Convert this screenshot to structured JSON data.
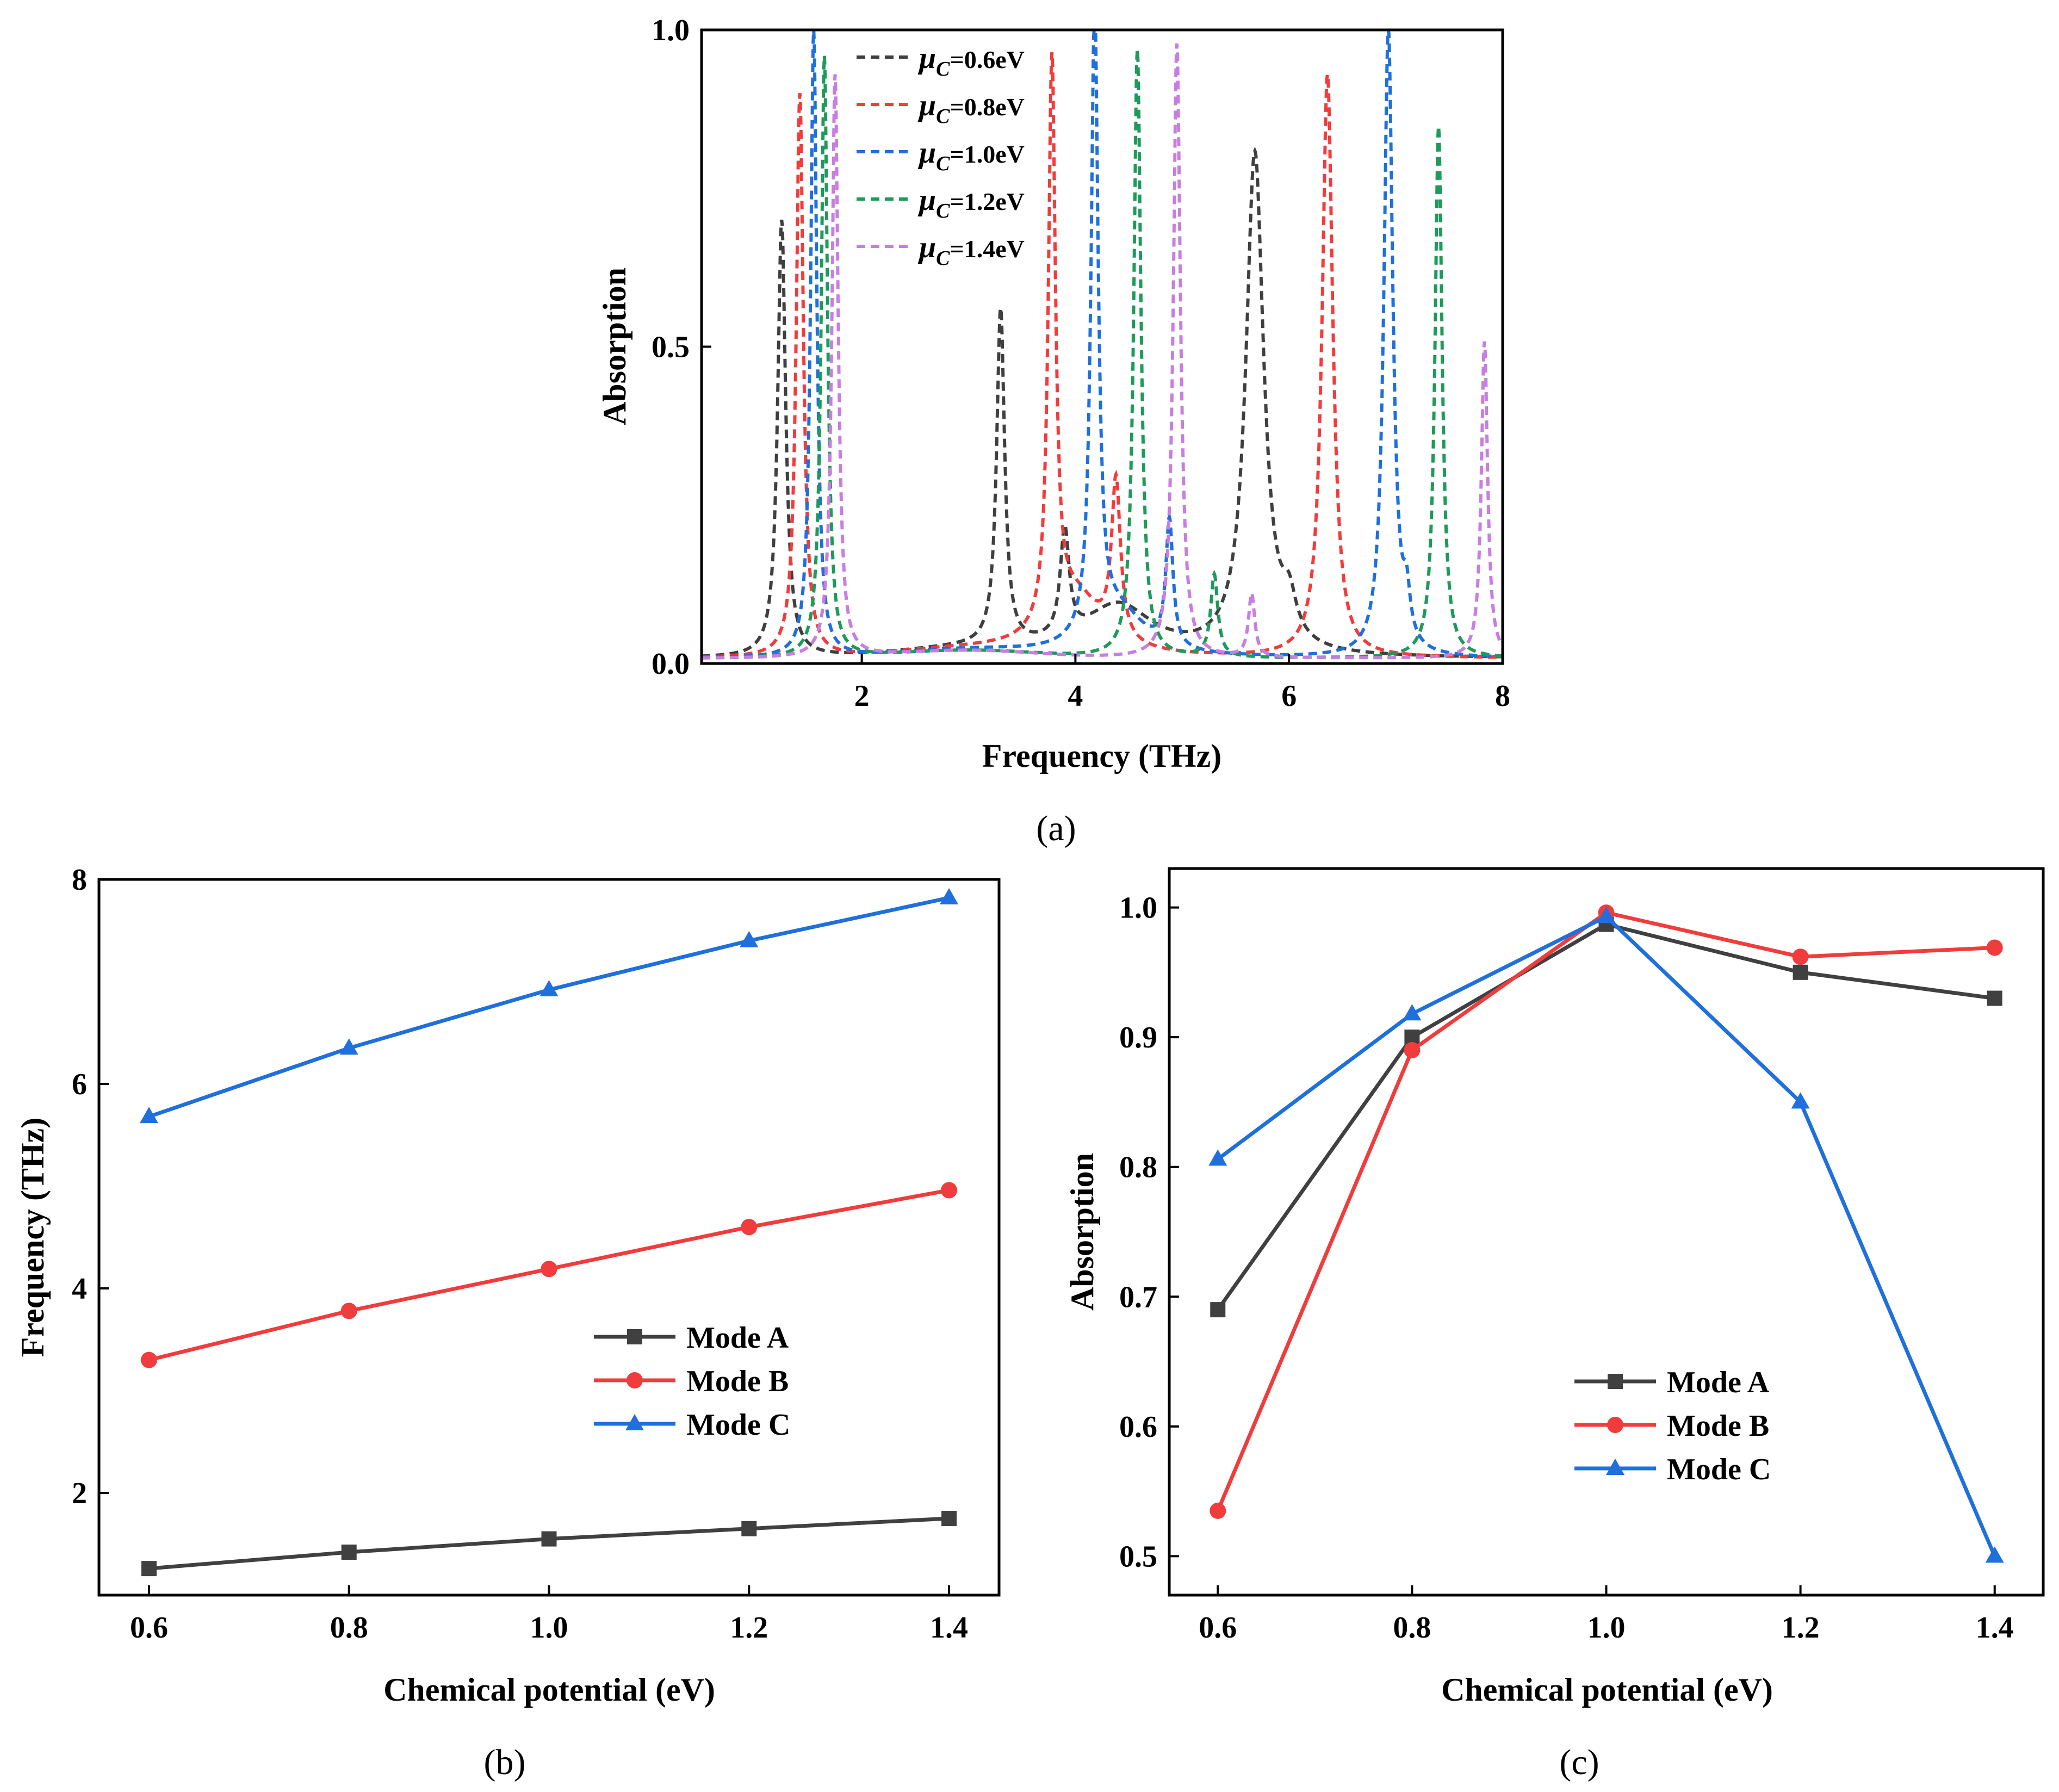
{
  "panels": {
    "a": {
      "caption": "(a)",
      "chart_data": {
        "type": "line",
        "title": "",
        "xlabel": "Frequency (THz)",
        "ylabel": "Absorption",
        "xlim": [
          0.5,
          8
        ],
        "ylim": [
          0,
          1
        ],
        "xticks": [
          "2",
          "4",
          "6",
          "8"
        ],
        "yticks": [
          "0.0",
          "0.5",
          "1.0"
        ],
        "line_style": "dashed",
        "legend_position": "top-left",
        "series": [
          {
            "name": "μC=0.6eV",
            "legend_mu": "μ",
            "legend_sub": "C",
            "legend_val": "=0.6eV",
            "color": "#3f3f3f",
            "peaks": [
              {
                "f": 1.25,
                "a": 0.69,
                "w": 0.045
              },
              {
                "f": 3.3,
                "a": 0.53,
                "w": 0.045
              },
              {
                "f": 3.9,
                "a": 0.17,
                "w": 0.05
              },
              {
                "f": 4.4,
                "a": 0.08,
                "w": 0.4
              },
              {
                "f": 5.68,
                "a": 0.79,
                "w": 0.1
              },
              {
                "f": 6.0,
                "a": 0.06,
                "w": 0.08
              }
            ]
          },
          {
            "name": "μC=0.8eV",
            "legend_mu": "μ",
            "legend_sub": "C",
            "legend_val": "=0.8eV",
            "color": "#f03c3c",
            "peaks": [
              {
                "f": 1.42,
                "a": 0.89,
                "w": 0.04
              },
              {
                "f": 3.78,
                "a": 0.89,
                "w": 0.04
              },
              {
                "f": 4.0,
                "a": 0.09,
                "w": 0.3
              },
              {
                "f": 4.38,
                "a": 0.25,
                "w": 0.05
              },
              {
                "f": 6.36,
                "a": 0.92,
                "w": 0.06
              }
            ]
          },
          {
            "name": "μC=1.0eV",
            "legend_mu": "μ",
            "legend_sub": "C",
            "legend_val": "=1.0eV",
            "color": "#1f6fdc",
            "peaks": [
              {
                "f": 1.55,
                "a": 0.99,
                "w": 0.035
              },
              {
                "f": 4.18,
                "a": 0.99,
                "w": 0.04
              },
              {
                "f": 4.88,
                "a": 0.2,
                "w": 0.04
              },
              {
                "f": 4.4,
                "a": 0.07,
                "w": 0.3
              },
              {
                "f": 6.93,
                "a": 0.99,
                "w": 0.05
              },
              {
                "f": 7.1,
                "a": 0.07,
                "w": 0.04
              }
            ]
          },
          {
            "name": "μC=1.2eV",
            "legend_mu": "μ",
            "legend_sub": "C",
            "legend_val": "=1.2eV",
            "color": "#1e9a5a",
            "peaks": [
              {
                "f": 1.65,
                "a": 0.95,
                "w": 0.035
              },
              {
                "f": 4.58,
                "a": 0.96,
                "w": 0.04
              },
              {
                "f": 5.3,
                "a": 0.13,
                "w": 0.04
              },
              {
                "f": 7.4,
                "a": 0.84,
                "w": 0.04
              }
            ]
          },
          {
            "name": "μC=1.4eV",
            "legend_mu": "μ",
            "legend_sub": "C",
            "legend_val": "=1.4eV",
            "color": "#c77ee0",
            "peaks": [
              {
                "f": 1.75,
                "a": 0.92,
                "w": 0.035
              },
              {
                "f": 4.95,
                "a": 0.97,
                "w": 0.04
              },
              {
                "f": 5.65,
                "a": 0.1,
                "w": 0.035
              },
              {
                "f": 7.83,
                "a": 0.5,
                "w": 0.035
              }
            ]
          }
        ]
      }
    },
    "b": {
      "caption": "(b)",
      "chart_data": {
        "type": "line",
        "title": "",
        "xlabel": "Chemical potential (eV)",
        "ylabel": "Frequency (THz)",
        "xlim": [
          0.55,
          1.45
        ],
        "ylim": [
          1.0,
          8.0
        ],
        "xticks": [
          "0.6",
          "0.8",
          "1.0",
          "1.2",
          "1.4"
        ],
        "yticks": [
          "2",
          "4",
          "6",
          "8"
        ],
        "categories": [
          0.6,
          0.8,
          1.0,
          1.2,
          1.4
        ],
        "legend_position": "center-right",
        "series": [
          {
            "name": "Mode A",
            "color": "#404040",
            "marker": "square",
            "values": [
              1.26,
              1.42,
              1.55,
              1.65,
              1.75
            ]
          },
          {
            "name": "Mode B",
            "color": "#f03c3c",
            "marker": "circle",
            "values": [
              3.3,
              3.78,
              4.19,
              4.6,
              4.96
            ]
          },
          {
            "name": "Mode C",
            "color": "#1f6fdc",
            "marker": "triangle",
            "values": [
              5.68,
              6.35,
              6.92,
              7.4,
              7.82
            ]
          }
        ]
      }
    },
    "c": {
      "caption": "(c)",
      "chart_data": {
        "type": "line",
        "title": "",
        "xlabel": "Chemical potential (eV)",
        "ylabel": "Absorption",
        "xlim": [
          0.55,
          1.45
        ],
        "ylim": [
          0.47,
          1.03
        ],
        "xticks": [
          "0.6",
          "0.8",
          "1.0",
          "1.2",
          "1.4"
        ],
        "yticks": [
          "0.5",
          "0.6",
          "0.7",
          "0.8",
          "0.9",
          "1.0"
        ],
        "categories": [
          0.6,
          0.8,
          1.0,
          1.2,
          1.4
        ],
        "legend_position": "center-right",
        "series": [
          {
            "name": "Mode A",
            "color": "#404040",
            "marker": "square",
            "values": [
              0.69,
              0.9,
              0.987,
              0.95,
              0.93
            ]
          },
          {
            "name": "Mode B",
            "color": "#f03c3c",
            "marker": "circle",
            "values": [
              0.535,
              0.89,
              0.996,
              0.962,
              0.969
            ]
          },
          {
            "name": "Mode C",
            "color": "#1f6fdc",
            "marker": "triangle",
            "values": [
              0.806,
              0.918,
              0.993,
              0.85,
              0.5
            ]
          }
        ]
      }
    }
  }
}
